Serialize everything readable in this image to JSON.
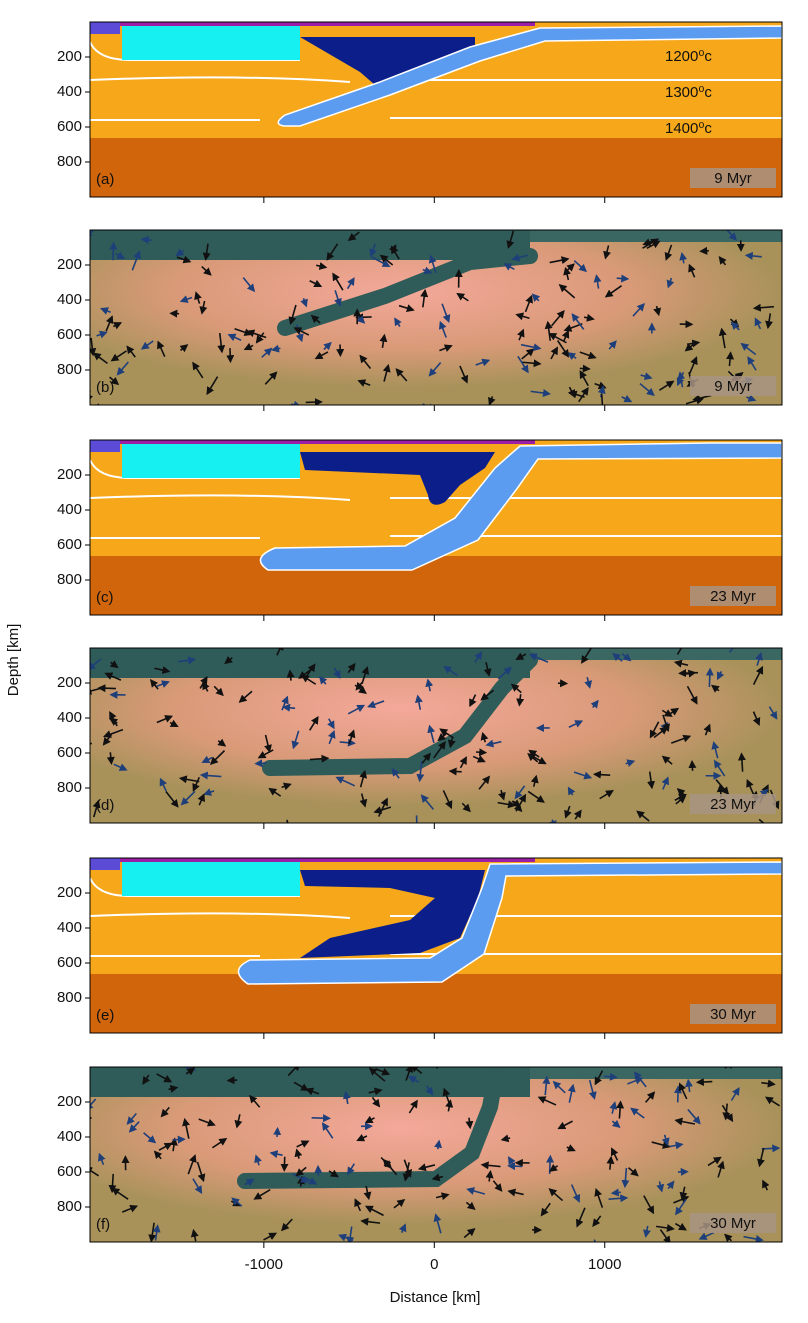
{
  "figure": {
    "ylabel": "Depth [km]",
    "xlabel": "Distance [km]"
  },
  "chart_data": [
    {
      "type": "temperature-field",
      "panel_label": "(a)",
      "time_label": "9 Myr",
      "xlim": [
        -2020,
        2040
      ],
      "ylim": [
        0,
        1000
      ],
      "yaxis_inverted": true,
      "yticks": [
        200,
        400,
        600,
        800
      ],
      "xticks": [
        -1000,
        0,
        1000
      ],
      "annotations": [
        "1200⁰c",
        "1300⁰c",
        "1400⁰c"
      ]
    },
    {
      "type": "velocity-field",
      "panel_label": "(b)",
      "time_label": "9 Myr",
      "xlim": [
        -2020,
        2040
      ],
      "ylim": [
        0,
        1000
      ],
      "yaxis_inverted": true,
      "yticks": [
        200,
        400,
        600,
        800
      ],
      "xticks": [
        -1000,
        0,
        1000
      ]
    },
    {
      "type": "temperature-field",
      "panel_label": "(c)",
      "time_label": "23 Myr",
      "xlim": [
        -2020,
        2040
      ],
      "ylim": [
        0,
        1000
      ],
      "yaxis_inverted": true,
      "yticks": [
        200,
        400,
        600,
        800
      ],
      "xticks": [
        -1000,
        0,
        1000
      ]
    },
    {
      "type": "velocity-field",
      "panel_label": "(d)",
      "time_label": "23 Myr",
      "xlim": [
        -2020,
        2040
      ],
      "ylim": [
        0,
        1000
      ],
      "yaxis_inverted": true,
      "yticks": [
        200,
        400,
        600,
        800
      ],
      "xticks": [
        -1000,
        0,
        1000
      ]
    },
    {
      "type": "temperature-field",
      "panel_label": "(e)",
      "time_label": "30 Myr",
      "xlim": [
        -2020,
        2040
      ],
      "ylim": [
        0,
        1000
      ],
      "yaxis_inverted": true,
      "yticks": [
        200,
        400,
        600,
        800
      ],
      "xticks": [
        -1000,
        0,
        1000
      ]
    },
    {
      "type": "velocity-field",
      "panel_label": "(f)",
      "time_label": "30 Myr",
      "xlim": [
        -2020,
        2040
      ],
      "ylim": [
        0,
        1000
      ],
      "yaxis_inverted": true,
      "yticks": [
        200,
        400,
        600,
        800
      ],
      "xticks": [
        -1000,
        0,
        1000
      ]
    }
  ]
}
